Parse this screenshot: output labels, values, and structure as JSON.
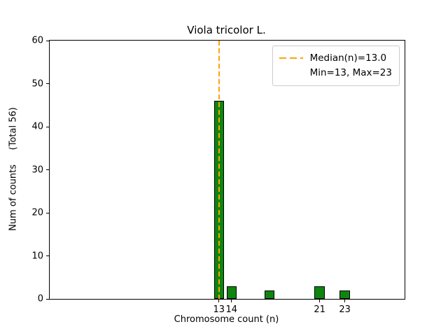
{
  "chart_data": {
    "type": "bar",
    "title": "Viola tricolor L.",
    "xlabel": "Chromosome count (n)",
    "ylabel": "Num of counts     (Total 56)",
    "total_counts": 56,
    "xlim": [
      -0.45,
      27.75
    ],
    "ylim": [
      0,
      60
    ],
    "yticks": [
      0,
      10,
      20,
      30,
      40,
      50,
      60
    ],
    "xticks": [
      13,
      14,
      21,
      23
    ],
    "bar_width": 0.8,
    "bars": [
      {
        "x": 13,
        "count": 46
      },
      {
        "x": 14,
        "count": 3
      },
      {
        "x": 17,
        "count": 2
      },
      {
        "x": 21,
        "count": 3
      },
      {
        "x": 23,
        "count": 2
      }
    ],
    "median_line": {
      "x": 13.0
    },
    "legend": {
      "entries": [
        {
          "label": "Median(n)=13.0",
          "swatch": "dashed-orange-line"
        },
        {
          "label": "Min=13, Max=23",
          "swatch": "none"
        }
      ]
    },
    "colors": {
      "bar_fill": "#0f850f",
      "bar_edge": "#000000",
      "median": "#ffa500",
      "axes": "#000000",
      "legend_border": "#cccccc"
    }
  }
}
